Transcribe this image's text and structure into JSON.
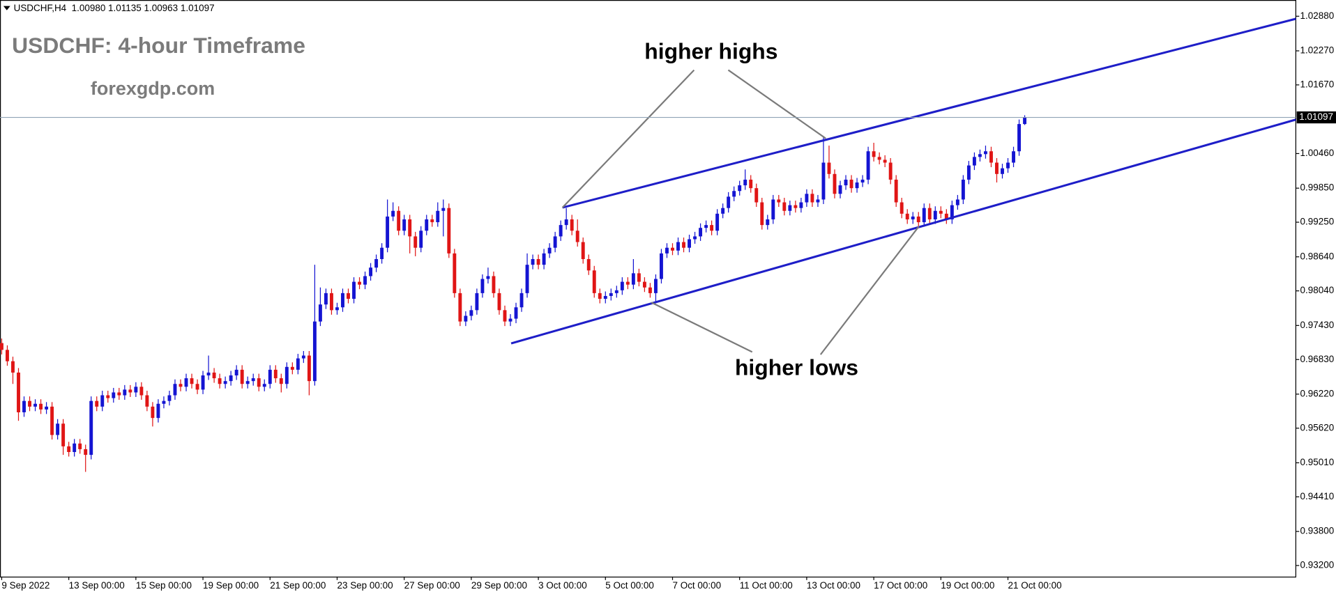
{
  "chart_data": {
    "type": "candlestick",
    "header": "USDCHF,H4  1.00980 1.01135 1.00963 1.01097",
    "title": "USDCHF: 4-hour Timeframe",
    "subtitle": "forexgdp.com",
    "annotations": [
      "higher highs",
      "higher lows"
    ],
    "up_color": "#1414d2",
    "down_color": "#e01515",
    "ylim": [
      0.93004,
      1.03166
    ],
    "yticks": [
      {
        "value": 1.0288,
        "label": "1.02880"
      },
      {
        "value": 1.0227,
        "label": "1.02270"
      },
      {
        "value": 1.0167,
        "label": "1.01670"
      },
      {
        "value": 1.0046,
        "label": "1.00460"
      },
      {
        "value": 0.9985,
        "label": "0.99850"
      },
      {
        "value": 0.9925,
        "label": "0.99250"
      },
      {
        "value": 0.9864,
        "label": "0.98640"
      },
      {
        "value": 0.9804,
        "label": "0.98040"
      },
      {
        "value": 0.9743,
        "label": "0.97430"
      },
      {
        "value": 0.9683,
        "label": "0.96830"
      },
      {
        "value": 0.9622,
        "label": "0.96220"
      },
      {
        "value": 0.9562,
        "label": "0.95620"
      },
      {
        "value": 0.9501,
        "label": "0.95010"
      },
      {
        "value": 0.9441,
        "label": "0.94410"
      },
      {
        "value": 0.938,
        "label": "0.93800"
      },
      {
        "value": 0.932,
        "label": "0.93200"
      }
    ],
    "price_line": {
      "value": 1.01097,
      "label": "1.01097"
    },
    "categories": [
      "9 Sep 2022",
      null,
      null,
      null,
      null,
      null,
      null,
      null,
      null,
      null,
      null,
      null,
      "13 Sep 00:00",
      null,
      null,
      null,
      null,
      null,
      null,
      null,
      null,
      null,
      null,
      null,
      "15 Sep 00:00",
      null,
      null,
      null,
      null,
      null,
      null,
      null,
      null,
      null,
      null,
      null,
      "19 Sep 00:00",
      null,
      null,
      null,
      null,
      null,
      null,
      null,
      null,
      null,
      null,
      null,
      "21 Sep 00:00",
      null,
      null,
      null,
      null,
      null,
      null,
      null,
      null,
      null,
      null,
      null,
      "23 Sep 00:00",
      null,
      null,
      null,
      null,
      null,
      null,
      null,
      null,
      null,
      null,
      null,
      "27 Sep 00:00",
      null,
      null,
      null,
      null,
      null,
      null,
      null,
      null,
      null,
      null,
      null,
      "29 Sep 00:00",
      null,
      null,
      null,
      null,
      null,
      null,
      null,
      null,
      null,
      null,
      null,
      "3 Oct 00:00",
      null,
      null,
      null,
      null,
      null,
      null,
      null,
      null,
      null,
      null,
      null,
      "5 Oct 00:00",
      null,
      null,
      null,
      null,
      null,
      null,
      null,
      null,
      null,
      null,
      null,
      "7 Oct 00:00",
      null,
      null,
      null,
      null,
      null,
      null,
      null,
      null,
      null,
      null,
      null,
      "11 Oct 00:00",
      null,
      null,
      null,
      null,
      null,
      null,
      null,
      null,
      null,
      null,
      null,
      "13 Oct 00:00",
      null,
      null,
      null,
      null,
      null,
      null,
      null,
      null,
      null,
      null,
      null,
      "17 Oct 00:00",
      null,
      null,
      null,
      null,
      null,
      null,
      null,
      null,
      null,
      null,
      null,
      "19 Oct 00:00",
      null,
      null,
      null,
      null,
      null,
      null,
      null,
      null,
      null,
      null,
      null,
      "21 Oct 00:00",
      null,
      null,
      null
    ],
    "ohlc": [
      [
        0.9712,
        0.972,
        0.9692,
        0.97
      ],
      [
        0.97,
        0.9708,
        0.9672,
        0.968
      ],
      [
        0.968,
        0.9688,
        0.964,
        0.966
      ],
      [
        0.966,
        0.9668,
        0.9575,
        0.959
      ],
      [
        0.959,
        0.9618,
        0.9582,
        0.961
      ],
      [
        0.961,
        0.9618,
        0.9592,
        0.96
      ],
      [
        0.96,
        0.9613,
        0.9592,
        0.9605
      ],
      [
        0.9605,
        0.9613,
        0.9587,
        0.9595
      ],
      [
        0.9595,
        0.9608,
        0.9587,
        0.96
      ],
      [
        0.96,
        0.9608,
        0.9542,
        0.955
      ],
      [
        0.955,
        0.9578,
        0.9542,
        0.957
      ],
      [
        0.957,
        0.9578,
        0.9515,
        0.953
      ],
      [
        0.953,
        0.9538,
        0.9512,
        0.952
      ],
      [
        0.952,
        0.9543,
        0.9512,
        0.9535
      ],
      [
        0.9535,
        0.9543,
        0.9517,
        0.9525
      ],
      [
        0.9525,
        0.9533,
        0.9485,
        0.9515
      ],
      [
        0.9515,
        0.9618,
        0.9507,
        0.961
      ],
      [
        0.961,
        0.9618,
        0.9592,
        0.96
      ],
      [
        0.96,
        0.9628,
        0.9592,
        0.962
      ],
      [
        0.962,
        0.9628,
        0.9607,
        0.9615
      ],
      [
        0.9615,
        0.9633,
        0.9607,
        0.9625
      ],
      [
        0.9625,
        0.9633,
        0.9612,
        0.962
      ],
      [
        0.962,
        0.9638,
        0.9612,
        0.963
      ],
      [
        0.963,
        0.9638,
        0.9617,
        0.9625
      ],
      [
        0.9625,
        0.9643,
        0.9617,
        0.9635
      ],
      [
        0.9635,
        0.9643,
        0.9612,
        0.962
      ],
      [
        0.962,
        0.9628,
        0.9592,
        0.96
      ],
      [
        0.96,
        0.9608,
        0.9565,
        0.958
      ],
      [
        0.958,
        0.9613,
        0.9572,
        0.9605
      ],
      [
        0.9605,
        0.9618,
        0.9597,
        0.961
      ],
      [
        0.961,
        0.9628,
        0.9602,
        0.962
      ],
      [
        0.962,
        0.9648,
        0.9612,
        0.964
      ],
      [
        0.964,
        0.9648,
        0.9627,
        0.9635
      ],
      [
        0.9635,
        0.9658,
        0.9627,
        0.965
      ],
      [
        0.965,
        0.9658,
        0.9632,
        0.964
      ],
      [
        0.964,
        0.9648,
        0.9622,
        0.963
      ],
      [
        0.963,
        0.9663,
        0.9622,
        0.9655
      ],
      [
        0.9655,
        0.969,
        0.9647,
        0.966
      ],
      [
        0.966,
        0.9668,
        0.9642,
        0.965
      ],
      [
        0.965,
        0.9658,
        0.9632,
        0.964
      ],
      [
        0.964,
        0.9653,
        0.9632,
        0.9645
      ],
      [
        0.9645,
        0.9663,
        0.9637,
        0.9655
      ],
      [
        0.9655,
        0.9673,
        0.9647,
        0.9665
      ],
      [
        0.9665,
        0.9673,
        0.9632,
        0.964
      ],
      [
        0.964,
        0.9653,
        0.9632,
        0.9645
      ],
      [
        0.9645,
        0.9658,
        0.9637,
        0.965
      ],
      [
        0.965,
        0.9658,
        0.9627,
        0.9635
      ],
      [
        0.9635,
        0.9648,
        0.9627,
        0.964
      ],
      [
        0.964,
        0.9673,
        0.9632,
        0.9665
      ],
      [
        0.9665,
        0.9673,
        0.9642,
        0.965
      ],
      [
        0.965,
        0.9658,
        0.9625,
        0.964
      ],
      [
        0.964,
        0.9678,
        0.9632,
        0.967
      ],
      [
        0.967,
        0.9678,
        0.9657,
        0.9665
      ],
      [
        0.9665,
        0.9693,
        0.9657,
        0.9685
      ],
      [
        0.9685,
        0.9698,
        0.9677,
        0.969
      ],
      [
        0.969,
        0.9698,
        0.962,
        0.9645
      ],
      [
        0.9645,
        0.985,
        0.9637,
        0.975
      ],
      [
        0.975,
        0.981,
        0.9742,
        0.978
      ],
      [
        0.978,
        0.9808,
        0.9772,
        0.98
      ],
      [
        0.98,
        0.9808,
        0.9762,
        0.977
      ],
      [
        0.977,
        0.9783,
        0.9762,
        0.9775
      ],
      [
        0.9775,
        0.9808,
        0.9767,
        0.98
      ],
      [
        0.98,
        0.9808,
        0.9782,
        0.979
      ],
      [
        0.979,
        0.9828,
        0.9782,
        0.982
      ],
      [
        0.982,
        0.9828,
        0.9807,
        0.9815
      ],
      [
        0.9815,
        0.9838,
        0.9807,
        0.983
      ],
      [
        0.983,
        0.9853,
        0.9822,
        0.9845
      ],
      [
        0.9845,
        0.9868,
        0.9837,
        0.986
      ],
      [
        0.986,
        0.9888,
        0.9852,
        0.988
      ],
      [
        0.988,
        0.9965,
        0.9872,
        0.9935
      ],
      [
        0.9935,
        0.996,
        0.9927,
        0.9945
      ],
      [
        0.9945,
        0.9953,
        0.9902,
        0.991
      ],
      [
        0.991,
        0.9938,
        0.9902,
        0.993
      ],
      [
        0.993,
        0.9938,
        0.987,
        0.99
      ],
      [
        0.99,
        0.9908,
        0.9865,
        0.988
      ],
      [
        0.988,
        0.9918,
        0.9872,
        0.991
      ],
      [
        0.991,
        0.9938,
        0.9902,
        0.993
      ],
      [
        0.993,
        0.9938,
        0.9917,
        0.9925
      ],
      [
        0.9925,
        0.996,
        0.9917,
        0.9945
      ],
      [
        0.9945,
        0.9965,
        0.99,
        0.995
      ],
      [
        0.995,
        0.9958,
        0.9862,
        0.987
      ],
      [
        0.987,
        0.9878,
        0.9792,
        0.98
      ],
      [
        0.98,
        0.9808,
        0.9742,
        0.975
      ],
      [
        0.975,
        0.9768,
        0.9742,
        0.976
      ],
      [
        0.976,
        0.9778,
        0.9752,
        0.977
      ],
      [
        0.977,
        0.9808,
        0.9762,
        0.98
      ],
      [
        0.98,
        0.9833,
        0.9792,
        0.9825
      ],
      [
        0.9825,
        0.9845,
        0.9817,
        0.983
      ],
      [
        0.983,
        0.9838,
        0.9792,
        0.98
      ],
      [
        0.98,
        0.9808,
        0.9762,
        0.977
      ],
      [
        0.977,
        0.9778,
        0.9742,
        0.975
      ],
      [
        0.975,
        0.9763,
        0.9742,
        0.9755
      ],
      [
        0.9755,
        0.9783,
        0.9747,
        0.9775
      ],
      [
        0.9775,
        0.9808,
        0.9767,
        0.98
      ],
      [
        0.98,
        0.987,
        0.9792,
        0.985
      ],
      [
        0.985,
        0.9868,
        0.9842,
        0.986
      ],
      [
        0.986,
        0.9868,
        0.9842,
        0.985
      ],
      [
        0.985,
        0.9878,
        0.9842,
        0.987
      ],
      [
        0.987,
        0.9888,
        0.9862,
        0.988
      ],
      [
        0.988,
        0.9908,
        0.9872,
        0.99
      ],
      [
        0.99,
        0.9928,
        0.9892,
        0.992
      ],
      [
        0.992,
        0.995,
        0.9912,
        0.993
      ],
      [
        0.993,
        0.9938,
        0.9902,
        0.991
      ],
      [
        0.991,
        0.993,
        0.9882,
        0.989
      ],
      [
        0.989,
        0.9898,
        0.9852,
        0.986
      ],
      [
        0.986,
        0.9868,
        0.9832,
        0.984
      ],
      [
        0.984,
        0.9848,
        0.9792,
        0.98
      ],
      [
        0.98,
        0.9808,
        0.9782,
        0.979
      ],
      [
        0.979,
        0.9803,
        0.9782,
        0.9795
      ],
      [
        0.9795,
        0.9808,
        0.9787,
        0.98
      ],
      [
        0.98,
        0.9813,
        0.9792,
        0.9805
      ],
      [
        0.9805,
        0.9828,
        0.9797,
        0.982
      ],
      [
        0.982,
        0.9828,
        0.9807,
        0.9815
      ],
      [
        0.9815,
        0.986,
        0.9807,
        0.9835
      ],
      [
        0.9835,
        0.9843,
        0.9812,
        0.982
      ],
      [
        0.982,
        0.9828,
        0.9802,
        0.981
      ],
      [
        0.981,
        0.9818,
        0.9792,
        0.98
      ],
      [
        0.98,
        0.9833,
        0.9782,
        0.9825
      ],
      [
        0.9825,
        0.9878,
        0.9817,
        0.987
      ],
      [
        0.987,
        0.9888,
        0.9862,
        0.988
      ],
      [
        0.988,
        0.9888,
        0.9867,
        0.9875
      ],
      [
        0.9875,
        0.9898,
        0.9867,
        0.989
      ],
      [
        0.989,
        0.9898,
        0.9872,
        0.988
      ],
      [
        0.988,
        0.9903,
        0.9872,
        0.9895
      ],
      [
        0.9895,
        0.9908,
        0.9887,
        0.99
      ],
      [
        0.99,
        0.9923,
        0.9892,
        0.9915
      ],
      [
        0.9915,
        0.9928,
        0.9907,
        0.992
      ],
      [
        0.992,
        0.9928,
        0.9902,
        0.991
      ],
      [
        0.991,
        0.9948,
        0.9902,
        0.994
      ],
      [
        0.994,
        0.9958,
        0.9932,
        0.995
      ],
      [
        0.995,
        0.9978,
        0.9942,
        0.997
      ],
      [
        0.997,
        0.9988,
        0.9962,
        0.998
      ],
      [
        0.998,
        0.9998,
        0.9972,
        0.999
      ],
      [
        0.999,
        1.0018,
        0.9982,
        1.0
      ],
      [
        1.0,
        1.0008,
        0.9977,
        0.9985
      ],
      [
        0.9985,
        0.9993,
        0.9952,
        0.996
      ],
      [
        0.996,
        0.9968,
        0.9912,
        0.992
      ],
      [
        0.992,
        0.9938,
        0.9912,
        0.993
      ],
      [
        0.993,
        0.9973,
        0.9922,
        0.9965
      ],
      [
        0.9965,
        0.9973,
        0.9952,
        0.996
      ],
      [
        0.996,
        0.9968,
        0.9937,
        0.9945
      ],
      [
        0.9945,
        0.9963,
        0.9937,
        0.9955
      ],
      [
        0.9955,
        0.9963,
        0.9942,
        0.995
      ],
      [
        0.995,
        0.9968,
        0.9942,
        0.996
      ],
      [
        0.996,
        0.9983,
        0.9952,
        0.9975
      ],
      [
        0.9975,
        0.9983,
        0.9952,
        0.996
      ],
      [
        0.996,
        0.9973,
        0.9952,
        0.9965
      ],
      [
        0.9965,
        1.0075,
        0.9957,
        1.003
      ],
      [
        1.003,
        1.006,
        1.0002,
        1.001
      ],
      [
        1.001,
        1.0018,
        0.9967,
        0.9975
      ],
      [
        0.9975,
        0.9998,
        0.9967,
        0.999
      ],
      [
        0.999,
        1.0008,
        0.9982,
        1.0
      ],
      [
        1.0,
        1.0008,
        0.9977,
        0.9985
      ],
      [
        0.9985,
        1.0003,
        0.9977,
        0.9995
      ],
      [
        0.9995,
        1.0008,
        0.9987,
        1.0
      ],
      [
        1.0,
        1.0058,
        0.9992,
        1.005
      ],
      [
        1.005,
        1.0065,
        1.0032,
        1.004
      ],
      [
        1.004,
        1.0048,
        1.0027,
        1.0035
      ],
      [
        1.0035,
        1.0043,
        1.0022,
        1.003
      ],
      [
        1.003,
        1.0038,
        0.9992,
        1.0
      ],
      [
        1.0,
        1.0008,
        0.9952,
        0.996
      ],
      [
        0.996,
        0.9968,
        0.9932,
        0.994
      ],
      [
        0.994,
        0.9948,
        0.9922,
        0.993
      ],
      [
        0.993,
        0.9943,
        0.9922,
        0.9935
      ],
      [
        0.9935,
        0.9943,
        0.9915,
        0.9925
      ],
      [
        0.9925,
        0.9958,
        0.9917,
        0.995
      ],
      [
        0.995,
        0.9958,
        0.9922,
        0.993
      ],
      [
        0.993,
        0.9953,
        0.9922,
        0.9945
      ],
      [
        0.9945,
        0.9953,
        0.9932,
        0.994
      ],
      [
        0.994,
        0.9948,
        0.9922,
        0.993
      ],
      [
        0.993,
        0.9963,
        0.9922,
        0.9955
      ],
      [
        0.9955,
        0.9973,
        0.9947,
        0.9965
      ],
      [
        0.9965,
        1.0008,
        0.9957,
        1.0
      ],
      [
        1.0,
        1.0033,
        0.9992,
        1.0025
      ],
      [
        1.0025,
        1.0048,
        1.0017,
        1.004
      ],
      [
        1.004,
        1.0053,
        1.0032,
        1.0045
      ],
      [
        1.0045,
        1.006,
        1.0037,
        1.005
      ],
      [
        1.005,
        1.0058,
        1.0022,
        1.003
      ],
      [
        1.003,
        1.0038,
        0.9995,
        1.001
      ],
      [
        1.001,
        1.0028,
        1.0002,
        1.002
      ],
      [
        1.002,
        1.0038,
        1.0012,
        1.003
      ],
      [
        1.003,
        1.0058,
        1.0022,
        1.005
      ],
      [
        1.005,
        1.0106,
        1.0042,
        1.0098
      ],
      [
        1.0098,
        1.01135,
        1.00963,
        1.01097
      ]
    ]
  }
}
